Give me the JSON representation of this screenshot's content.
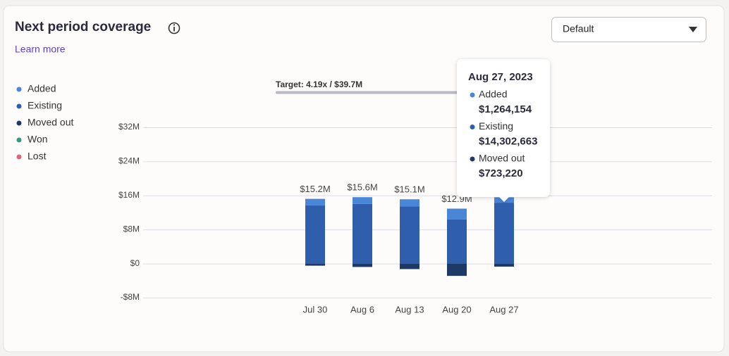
{
  "title": "Next period coverage",
  "link": "Learn more",
  "dropdown": "Default",
  "target": "Target: 4.19x / $39.7M",
  "chart_data": {
    "type": "stacked_bar",
    "categories": [
      "Jul 30",
      "Aug 6",
      "Aug 13",
      "Aug 20",
      "Aug 27"
    ],
    "series": [
      {
        "name": "Added",
        "color": "#4a86d8",
        "values": [
          1500000,
          1600000,
          1700000,
          2500000,
          1264154
        ],
        "value_labels": [
          null,
          null,
          null,
          null,
          "$1,264,154"
        ]
      },
      {
        "name": "Existing",
        "color": "#2f5fac",
        "values": [
          13700000,
          14000000,
          13400000,
          10400000,
          14302663
        ],
        "value_labels": [
          null,
          null,
          null,
          null,
          "$14,302,663"
        ]
      },
      {
        "name": "Moved out",
        "color": "#1d3a66",
        "values": [
          -500000,
          -800000,
          -1300000,
          -2900000,
          -723220
        ],
        "value_labels": [
          null,
          null,
          null,
          null,
          "$723,220"
        ]
      },
      {
        "name": "Won",
        "color": "#3a9a7e",
        "values": [
          0,
          0,
          0,
          0,
          0
        ]
      },
      {
        "name": "Lost",
        "color": "#d9677a",
        "values": [
          0,
          0,
          0,
          0,
          0
        ]
      }
    ],
    "total_labels": [
      "$15.2M",
      "$15.6M",
      "$15.1M",
      "$12.9M",
      null
    ],
    "tooltip_title": "Aug 27, 2023",
    "ylim": [
      -8000000,
      32000000
    ],
    "yticks": [
      {
        "value": -8000000,
        "label": "-$8M"
      },
      {
        "value": 0,
        "label": "$0"
      },
      {
        "value": 8000000,
        "label": "$8M"
      },
      {
        "value": 16000000,
        "label": "$16M"
      },
      {
        "value": 24000000,
        "label": "$24M"
      },
      {
        "value": 32000000,
        "label": "$32M"
      }
    ],
    "grid": true
  }
}
